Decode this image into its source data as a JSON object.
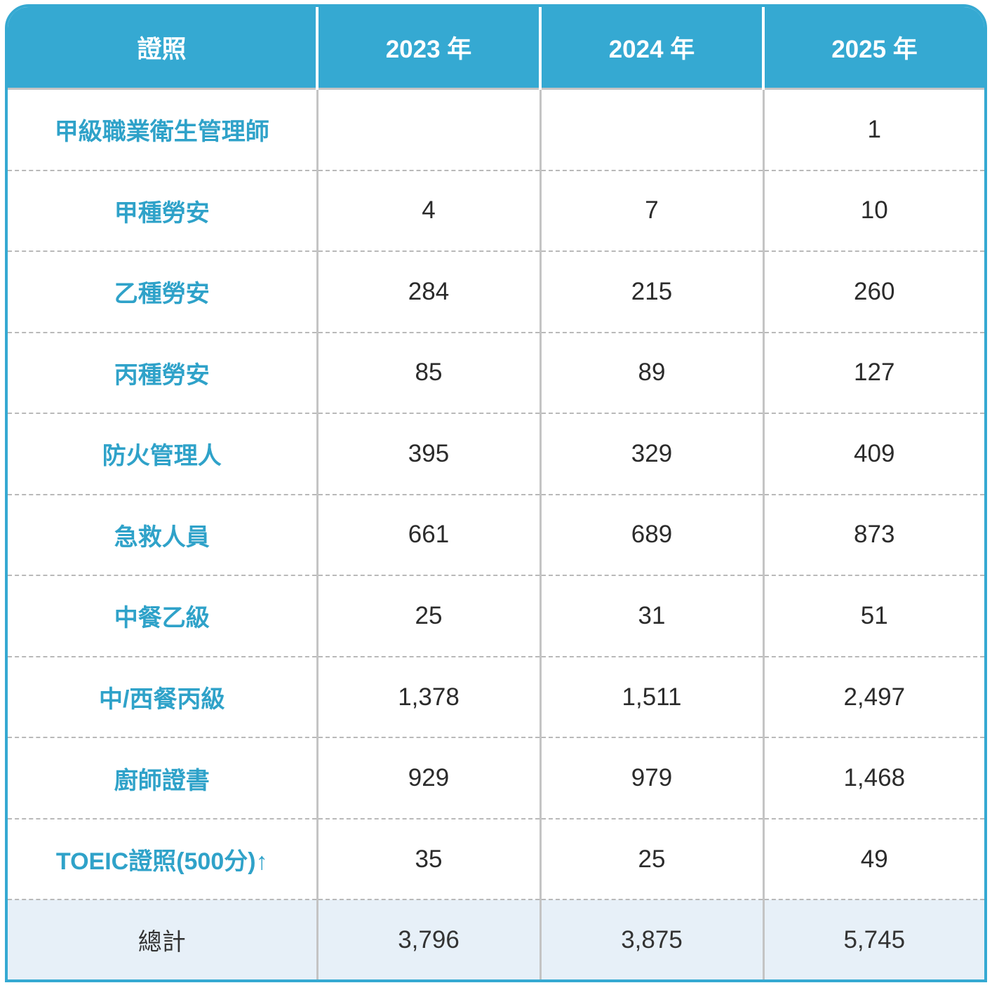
{
  "table": {
    "headers": [
      "證照",
      "2023 年",
      "2024 年",
      "2025 年"
    ],
    "rows": [
      {
        "name": "甲級職業衛生管理師",
        "y2023": "",
        "y2024": "",
        "y2025": "1"
      },
      {
        "name": "甲種勞安",
        "y2023": "4",
        "y2024": "7",
        "y2025": "10"
      },
      {
        "name": "乙種勞安",
        "y2023": "284",
        "y2024": "215",
        "y2025": "260"
      },
      {
        "name": "丙種勞安",
        "y2023": "85",
        "y2024": "89",
        "y2025": "127"
      },
      {
        "name": "防火管理人",
        "y2023": "395",
        "y2024": "329",
        "y2025": "409"
      },
      {
        "name": "急救人員",
        "y2023": "661",
        "y2024": "689",
        "y2025": "873"
      },
      {
        "name": "中餐乙級",
        "y2023": "25",
        "y2024": "31",
        "y2025": "51"
      },
      {
        "name": "中/西餐丙級",
        "y2023": "1,378",
        "y2024": "1,511",
        "y2025": "2,497"
      },
      {
        "name": "廚師證書",
        "y2023": "929",
        "y2024": "979",
        "y2025": "1,468"
      },
      {
        "name": "TOEIC證照(500分)↑",
        "y2023": "35",
        "y2024": "25",
        "y2025": "49"
      }
    ],
    "total": {
      "name": "總計",
      "y2023": "3,796",
      "y2024": "3,875",
      "y2025": "5,745"
    }
  },
  "colors": {
    "header_bg": "#35a9d2",
    "label_text": "#2fa2c9",
    "total_bg": "#e7f0f8"
  }
}
